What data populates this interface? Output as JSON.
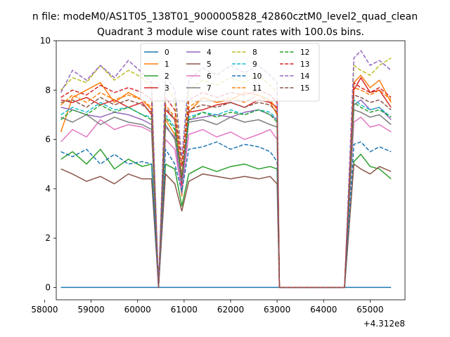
{
  "figure": {
    "suptitle": "n file: modeM0/AS1T05_138T01_9000005828_42860cztM0_level2_quad_clean",
    "title": "Quadrant 3 module wise count rates with 100.0s bins."
  },
  "chart_data": {
    "type": "line",
    "title": "Quadrant 3 module wise count rates with 100.0s bins.",
    "xlabel": "",
    "ylabel": "",
    "x_offset_label": "+4.312e8",
    "xlim": [
      58250,
      65750
    ],
    "ylim": [
      -0.5,
      10
    ],
    "x_ticks": [
      58000,
      59000,
      60000,
      61000,
      62000,
      63000,
      64000,
      65000
    ],
    "y_ticks": [
      0,
      2,
      4,
      6,
      8,
      10
    ],
    "legend_position": "top-center",
    "legend_columns": 4,
    "series": [
      {
        "name": "0",
        "color": "#1f77b4",
        "dash": "solid",
        "x": [
          58350,
          65450
        ],
        "y": [
          0,
          0
        ]
      },
      {
        "name": "1",
        "color": "#ff7f0e",
        "dash": "solid",
        "x": [
          58350,
          58600,
          58900,
          59200,
          59500,
          59800,
          60100,
          60300,
          60450,
          60600,
          60800,
          60950,
          61100,
          61400,
          61700,
          62000,
          62300,
          62600,
          62850,
          63000,
          63050,
          64450,
          64650,
          64800,
          65000,
          65200,
          65450
        ],
        "y": [
          6.3,
          7.7,
          8.0,
          8.3,
          7.5,
          7.9,
          7.6,
          7.2,
          0,
          6.8,
          6.2,
          3.7,
          7.1,
          7.7,
          7.5,
          7.6,
          7.9,
          7.8,
          7.5,
          7.0,
          0,
          0,
          8.3,
          8.6,
          8.1,
          8.4,
          7.5
        ]
      },
      {
        "name": "2",
        "color": "#2ca02c",
        "dash": "solid",
        "x": [
          58350,
          58600,
          58900,
          59200,
          59500,
          59800,
          60100,
          60300,
          60450,
          60600,
          60800,
          60950,
          61100,
          61400,
          61700,
          62000,
          62300,
          62600,
          62850,
          63000,
          63050,
          64450,
          64650,
          64800,
          65000,
          65200,
          65450
        ],
        "y": [
          5.2,
          5.5,
          5.0,
          5.6,
          4.8,
          5.2,
          4.9,
          5.0,
          0,
          5.0,
          4.8,
          3.3,
          4.6,
          4.9,
          4.7,
          4.9,
          5.0,
          4.8,
          4.9,
          4.8,
          0,
          0,
          5.1,
          5.4,
          4.9,
          4.8,
          4.4
        ]
      },
      {
        "name": "3",
        "color": "#d62728",
        "dash": "solid",
        "x": [
          58350,
          58600,
          58900,
          59200,
          59500,
          59800,
          60100,
          60300,
          60450,
          60600,
          60800,
          60950,
          61100,
          61400,
          61700,
          62000,
          62300,
          62600,
          62850,
          63000,
          63050,
          64450,
          64650,
          64800,
          65000,
          65200,
          65450
        ],
        "y": [
          7.6,
          7.5,
          7.7,
          7.4,
          7.6,
          7.3,
          7.5,
          7.0,
          0,
          7.2,
          6.8,
          4.1,
          7.1,
          7.2,
          7.4,
          7.5,
          7.3,
          7.6,
          7.5,
          7.3,
          0,
          0,
          8.0,
          8.5,
          7.9,
          8.0,
          7.3
        ]
      },
      {
        "name": "4",
        "color": "#9467bd",
        "dash": "solid",
        "x": [
          58350,
          58600,
          58900,
          59200,
          59500,
          59800,
          60100,
          60300,
          60450,
          60600,
          60800,
          60950,
          61100,
          61400,
          61700,
          62000,
          62300,
          62600,
          62850,
          63000,
          63050,
          64450,
          64650,
          64800,
          65000,
          65200,
          65450
        ],
        "y": [
          7.3,
          7.2,
          7.0,
          6.9,
          7.1,
          7.0,
          6.8,
          6.6,
          0,
          6.5,
          6.1,
          3.8,
          6.8,
          6.9,
          7.0,
          6.9,
          7.1,
          7.2,
          7.0,
          6.8,
          0,
          0,
          7.4,
          7.6,
          7.2,
          7.3,
          6.8
        ]
      },
      {
        "name": "5",
        "color": "#8c564b",
        "dash": "solid",
        "x": [
          58350,
          58600,
          58900,
          59200,
          59500,
          59800,
          60100,
          60300,
          60450,
          60600,
          60800,
          60950,
          61100,
          61400,
          61700,
          62000,
          62300,
          62600,
          62850,
          63000,
          63050,
          64450,
          64650,
          64800,
          65000,
          65200,
          65450
        ],
        "y": [
          4.8,
          4.6,
          4.3,
          4.5,
          4.2,
          4.6,
          4.4,
          4.4,
          0,
          4.6,
          4.2,
          3.1,
          4.3,
          4.6,
          4.5,
          4.4,
          4.5,
          4.4,
          4.5,
          4.2,
          0,
          0,
          5.0,
          4.8,
          4.6,
          4.9,
          4.7
        ]
      },
      {
        "name": "6",
        "color": "#e377c2",
        "dash": "solid",
        "x": [
          58350,
          58600,
          58900,
          59200,
          59500,
          59800,
          60100,
          60300,
          60450,
          60600,
          60800,
          60950,
          61100,
          61400,
          61700,
          62000,
          62300,
          62600,
          62850,
          63000,
          63050,
          64450,
          64650,
          64800,
          65000,
          65200,
          65450
        ],
        "y": [
          5.9,
          6.4,
          6.1,
          6.8,
          6.4,
          6.6,
          6.5,
          6.3,
          0,
          6.0,
          5.6,
          3.9,
          6.2,
          6.4,
          6.1,
          6.3,
          6.0,
          6.2,
          6.4,
          6.0,
          0,
          0,
          6.7,
          6.9,
          6.5,
          6.6,
          6.3
        ]
      },
      {
        "name": "7",
        "color": "#7f7f7f",
        "dash": "solid",
        "x": [
          58350,
          58600,
          58900,
          59200,
          59500,
          59800,
          60100,
          60300,
          60450,
          60600,
          60800,
          60950,
          61100,
          61400,
          61700,
          62000,
          62300,
          62600,
          62850,
          63000,
          63050,
          64450,
          64650,
          64800,
          65000,
          65200,
          65450
        ],
        "y": [
          6.9,
          6.7,
          7.0,
          6.6,
          6.9,
          6.7,
          6.6,
          6.4,
          0,
          6.6,
          6.0,
          4.6,
          6.7,
          6.8,
          6.6,
          6.9,
          6.7,
          6.8,
          6.6,
          6.5,
          0,
          0,
          7.2,
          7.1,
          6.9,
          7.0,
          6.6
        ]
      },
      {
        "name": "8",
        "color": "#bcbd22",
        "dash": "dashed",
        "x": [
          58350,
          58600,
          58900,
          59200,
          59500,
          59800,
          60100,
          60300,
          60450,
          60600,
          60800,
          60950,
          61100,
          61400,
          61700,
          62000,
          62300,
          62600,
          62850,
          63000,
          63050,
          64450,
          64650,
          64800,
          65000,
          65200,
          65450
        ],
        "y": [
          8.0,
          8.5,
          8.3,
          9.0,
          8.4,
          8.8,
          8.5,
          8.1,
          0,
          8.2,
          7.6,
          5.0,
          8.0,
          8.4,
          8.2,
          8.5,
          8.3,
          8.6,
          8.2,
          7.9,
          0,
          0,
          9.0,
          8.8,
          8.6,
          9.0,
          9.3
        ]
      },
      {
        "name": "9",
        "color": "#17becf",
        "dash": "dashed",
        "x": [
          58350,
          58600,
          58900,
          59200,
          59500,
          59800,
          60100,
          60300,
          60450,
          60600,
          60800,
          60950,
          61100,
          61400,
          61700,
          62000,
          62300,
          62600,
          62850,
          63000,
          63050,
          64450,
          64650,
          64800,
          65000,
          65200,
          65450
        ],
        "y": [
          7.0,
          7.3,
          7.1,
          7.5,
          7.2,
          7.3,
          7.0,
          6.9,
          0,
          7.0,
          6.5,
          4.3,
          6.9,
          7.1,
          7.0,
          7.2,
          7.0,
          7.2,
          7.1,
          6.8,
          0,
          0,
          7.6,
          7.4,
          7.2,
          7.3,
          6.9
        ]
      },
      {
        "name": "10",
        "color": "#1f77b4",
        "dash": "dashed",
        "x": [
          58350,
          58600,
          58900,
          59200,
          59500,
          59800,
          60100,
          60300,
          60450,
          60600,
          60800,
          60950,
          61100,
          61400,
          61700,
          62000,
          62300,
          62600,
          62850,
          63000,
          63050,
          64450,
          64650,
          64800,
          65000,
          65200,
          65450
        ],
        "y": [
          5.5,
          5.3,
          5.6,
          5.0,
          5.4,
          5.0,
          5.1,
          5.0,
          0,
          5.6,
          5.0,
          3.9,
          5.6,
          5.7,
          5.9,
          5.6,
          5.8,
          5.7,
          5.5,
          5.1,
          0,
          0,
          5.8,
          5.9,
          5.5,
          5.7,
          5.5
        ]
      },
      {
        "name": "11",
        "color": "#ff7f0e",
        "dash": "dashed",
        "x": [
          58350,
          58600,
          58900,
          59200,
          59500,
          59800,
          60100,
          60300,
          60450,
          60600,
          60800,
          60950,
          61100,
          61400,
          61700,
          62000,
          62300,
          62600,
          62850,
          63000,
          63050,
          64450,
          64650,
          64800,
          65000,
          65200,
          65450
        ],
        "y": [
          7.4,
          7.8,
          7.5,
          7.9,
          7.6,
          7.8,
          7.6,
          7.3,
          0,
          7.4,
          6.9,
          4.5,
          7.3,
          7.7,
          7.5,
          7.7,
          7.5,
          7.8,
          7.6,
          7.2,
          0,
          0,
          8.1,
          8.0,
          7.8,
          8.0,
          7.6
        ]
      },
      {
        "name": "12",
        "color": "#2ca02c",
        "dash": "dashed",
        "x": [
          58350,
          58600,
          58900,
          59200,
          59500,
          59800,
          60100,
          60300,
          60450,
          60600,
          60800,
          60950,
          61100,
          61400,
          61700,
          62000,
          62300,
          62600,
          62850,
          63000,
          63050,
          64450,
          64650,
          64800,
          65000,
          65200,
          65450
        ],
        "y": [
          6.8,
          7.2,
          7.0,
          7.4,
          7.1,
          7.3,
          7.0,
          6.8,
          0,
          6.9,
          6.4,
          4.4,
          6.8,
          7.1,
          6.9,
          7.1,
          7.0,
          7.2,
          7.0,
          6.7,
          0,
          0,
          7.5,
          7.3,
          7.1,
          7.2,
          6.9
        ]
      },
      {
        "name": "13",
        "color": "#d62728",
        "dash": "dashed",
        "x": [
          58350,
          58600,
          58900,
          59200,
          59500,
          59800,
          60100,
          60300,
          60450,
          60600,
          60800,
          60950,
          61100,
          61400,
          61700,
          62000,
          62300,
          62600,
          62850,
          63000,
          63050,
          64450,
          64650,
          64800,
          65000,
          65200,
          65450
        ],
        "y": [
          7.7,
          8.0,
          7.8,
          8.2,
          7.9,
          8.1,
          7.9,
          7.6,
          0,
          7.7,
          7.2,
          4.9,
          7.6,
          7.9,
          7.7,
          7.9,
          7.8,
          8.0,
          7.8,
          7.5,
          0,
          0,
          8.3,
          8.1,
          7.9,
          8.1,
          7.7
        ]
      },
      {
        "name": "14",
        "color": "#9467bd",
        "dash": "dashed",
        "x": [
          58350,
          58600,
          58900,
          59200,
          59500,
          59800,
          60100,
          60300,
          60450,
          60600,
          60800,
          60950,
          61100,
          61400,
          61700,
          62000,
          62300,
          62600,
          62850,
          63000,
          63050,
          64450,
          64650,
          64800,
          65000,
          65200,
          65450
        ],
        "y": [
          7.9,
          8.8,
          8.4,
          9.0,
          8.5,
          9.2,
          8.7,
          8.3,
          0,
          8.6,
          8.0,
          5.3,
          8.4,
          8.9,
          8.6,
          9.0,
          8.7,
          9.0,
          8.6,
          8.3,
          0,
          0,
          9.3,
          9.6,
          9.0,
          9.2,
          8.8
        ]
      },
      {
        "name": "15",
        "color": "#8c564b",
        "dash": "dashed",
        "x": [
          58350,
          58600,
          58900,
          59200,
          59500,
          59800,
          60100,
          60300,
          60450,
          60600,
          60800,
          60950,
          61100,
          61400,
          61700,
          62000,
          62300,
          62600,
          62850,
          63000,
          63050,
          64450,
          64650,
          64800,
          65000,
          65200,
          65450
        ],
        "y": [
          7.5,
          7.6,
          7.3,
          7.7,
          7.4,
          7.6,
          7.4,
          7.1,
          0,
          7.3,
          6.8,
          4.4,
          7.2,
          7.4,
          7.3,
          7.5,
          7.3,
          7.5,
          7.4,
          7.1,
          0,
          0,
          7.8,
          7.7,
          7.5,
          7.6,
          7.2
        ]
      }
    ]
  }
}
